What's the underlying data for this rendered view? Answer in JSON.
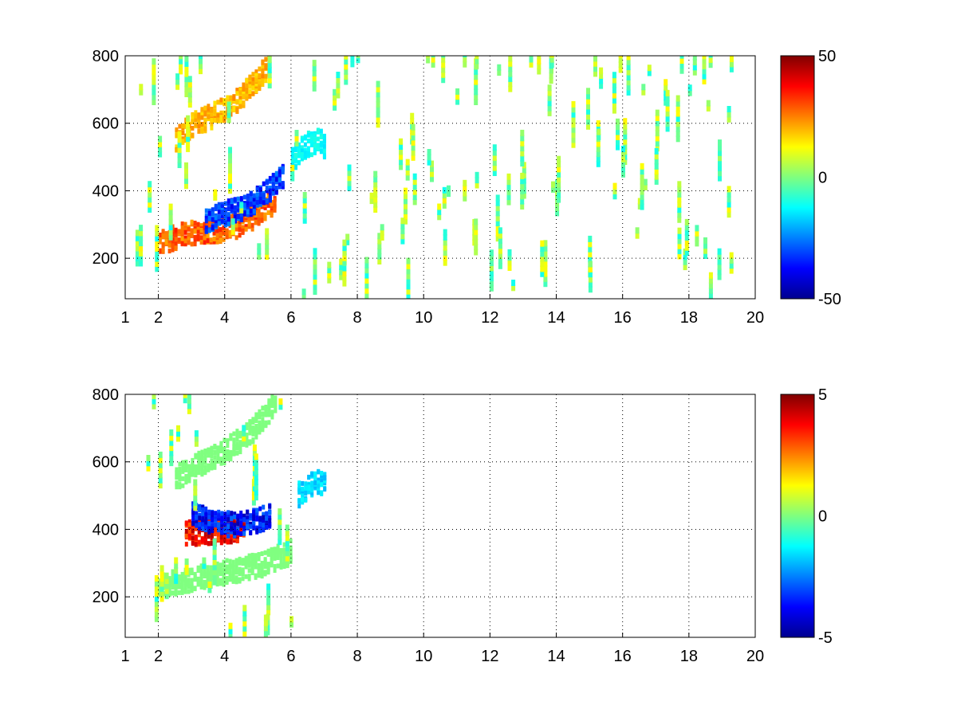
{
  "chart_data": [
    {
      "type": "heatmap",
      "panel": "top",
      "title": "",
      "xlabel": "",
      "ylabel": "",
      "xlim": [
        1,
        20
      ],
      "ylim": [
        80,
        800
      ],
      "xticks": [
        1,
        2,
        4,
        6,
        8,
        10,
        12,
        14,
        16,
        18,
        20
      ],
      "yticks": [
        200,
        400,
        600,
        800
      ],
      "grid": "on (dotted)",
      "colormap": "jet",
      "clim": [
        -50,
        50
      ],
      "colorbar": {
        "position": "right",
        "ticks": [
          -50,
          0,
          50
        ]
      },
      "features": [
        {
          "description_values": "positive band",
          "x": [
            2.0,
            2.6,
            3.2,
            3.8,
            4.4,
            5.0,
            5.5
          ],
          "y": [
            250,
            275,
            285,
            290,
            305,
            340,
            380
          ],
          "value": 35
        },
        {
          "description_values": "negative band",
          "x": [
            3.4,
            4.0,
            4.6,
            5.2,
            5.8
          ],
          "y": [
            320,
            340,
            360,
            400,
            460
          ],
          "value": -40
        },
        {
          "description_values": "upper positive arc",
          "x": [
            2.5,
            3.0,
            3.6,
            4.2,
            4.8,
            5.3
          ],
          "y": [
            560,
            600,
            630,
            660,
            720,
            780
          ],
          "value": 25
        },
        {
          "description_values": "cyan patch",
          "x": [
            6.0,
            6.4,
            6.8,
            7.0
          ],
          "y": [
            500,
            540,
            560,
            530
          ],
          "value": -15
        }
      ]
    },
    {
      "type": "heatmap",
      "panel": "bottom",
      "title": "",
      "xlabel": "",
      "ylabel": "",
      "xlim": [
        1,
        20
      ],
      "ylim": [
        80,
        800
      ],
      "xticks": [
        1,
        2,
        4,
        6,
        8,
        10,
        12,
        14,
        16,
        18,
        20
      ],
      "yticks": [
        200,
        400,
        600,
        800
      ],
      "grid": "on (dotted)",
      "colormap": "jet",
      "clim": [
        -5,
        5
      ],
      "colorbar": {
        "position": "right",
        "ticks": [
          -5,
          0,
          5
        ]
      },
      "features": [
        {
          "description_values": "positive band",
          "x": [
            2.8,
            3.4,
            4.0,
            4.6
          ],
          "y": [
            395,
            395,
            400,
            410
          ],
          "value": 4.5
        },
        {
          "description_values": "negative band",
          "x": [
            3.0,
            3.6,
            4.2,
            4.8,
            5.4
          ],
          "y": [
            450,
            430,
            420,
            430,
            445
          ],
          "value": -4.5
        },
        {
          "description_values": "lower near-zero band",
          "x": [
            2.0,
            3.0,
            4.0,
            5.0,
            6.0
          ],
          "y": [
            240,
            260,
            280,
            300,
            340
          ],
          "value": 0
        },
        {
          "description_values": "upper near-zero arc",
          "x": [
            2.5,
            3.2,
            4.0,
            4.8,
            5.5
          ],
          "y": [
            560,
            600,
            640,
            700,
            780
          ],
          "value": 0
        },
        {
          "description_values": "blue patch",
          "x": [
            6.2,
            6.6,
            7.0
          ],
          "y": [
            510,
            540,
            550
          ],
          "value": -2
        }
      ]
    }
  ]
}
